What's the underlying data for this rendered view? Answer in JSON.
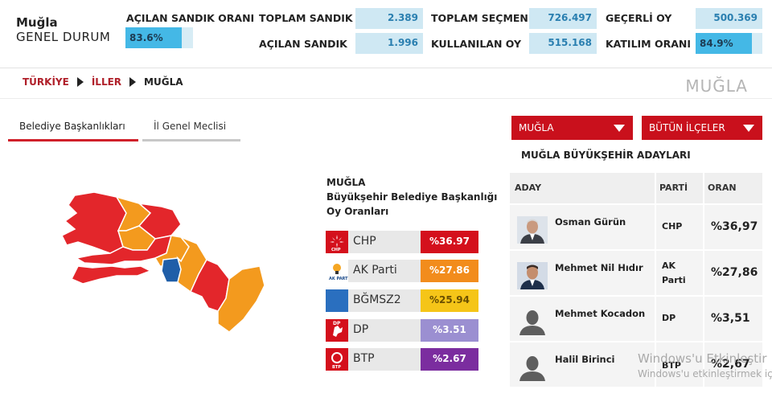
{
  "header": {
    "city": "Muğla",
    "subtitle": "GENEL DURUM",
    "opened_ratio_label": "AÇILAN SANDIK ORANI",
    "opened_ratio_value": "83.6%",
    "opened_ratio_fraction": 0.836,
    "total_boxes_label": "TOPLAM SANDIK",
    "total_boxes_value": "2.389",
    "opened_boxes_label": "AÇILAN SANDIK",
    "opened_boxes_value": "1.996",
    "total_voters_label": "TOPLAM SEÇMEN",
    "total_voters_value": "726.497",
    "used_votes_label": "KULLANILAN OY",
    "used_votes_value": "515.168",
    "valid_votes_label": "GEÇERLİ OY",
    "valid_votes_value": "500.369",
    "turnout_label": "KATILIM ORANI",
    "turnout_value": "84.9%",
    "turnout_fraction": 0.849
  },
  "breadcrumb": {
    "item1": "TÜRKİYE",
    "item2": "İLLER",
    "item3": "MUĞLA"
  },
  "page_title": "MUĞLA",
  "tabs": {
    "tab1": "Belediye Başkanlıkları",
    "tab2": "İl Genel Meclisi"
  },
  "results": {
    "title_line1": "MUĞLA",
    "title_line2": "Büyükşehir Belediye Başkanlığı",
    "title_line3": "Oy Oranları",
    "parties": [
      {
        "name": "CHP",
        "pct": "%36.97",
        "color": "#d4101c",
        "logo": "chp-icon"
      },
      {
        "name": "AK Parti",
        "pct": "%27.86",
        "color": "#f28c1c",
        "logo": "akparti-icon"
      },
      {
        "name": "BĞMSZ2",
        "pct": "%25.94",
        "color": "#f5c518",
        "logo": "independent-icon"
      },
      {
        "name": "DP",
        "pct": "%3.51",
        "color": "#9b8fd1",
        "logo": "dp-icon"
      },
      {
        "name": "BTP",
        "pct": "%2.67",
        "color": "#7b2d9f",
        "logo": "btp-icon"
      }
    ]
  },
  "filters": {
    "province": "MUĞLA",
    "district": "BÜTÜN İLÇELER"
  },
  "candidates": {
    "title": "MUĞLA BÜYÜKŞEHİR ADAYLARI",
    "col_name": "ADAY",
    "col_party": "PARTİ",
    "col_ratio": "ORAN",
    "rows": [
      {
        "name": "Osman Gürün",
        "party_line1": "CHP",
        "party_line2": "",
        "ratio": "%36,97"
      },
      {
        "name": "Mehmet Nil Hıdır",
        "party_line1": "AK",
        "party_line2": "Parti",
        "ratio": "%27,86"
      },
      {
        "name": "Mehmet Kocadon",
        "party_line1": "DP",
        "party_line2": "",
        "ratio": "%3,51"
      },
      {
        "name": "Halil Birinci",
        "party_line1": "BTP",
        "party_line2": "",
        "ratio": "%2,67"
      }
    ]
  },
  "watermark": {
    "line1": "Windows'u Etkinleştir",
    "line2": "Windows'u etkinleştirmek için"
  },
  "colors": {
    "accent": "#c9101c",
    "stat_bg": "#cfe8f3",
    "stat_fill": "#44b8e6",
    "map_chp": "#e3262b",
    "map_ak": "#f39a1e",
    "map_ind": "#1f5ea8"
  }
}
